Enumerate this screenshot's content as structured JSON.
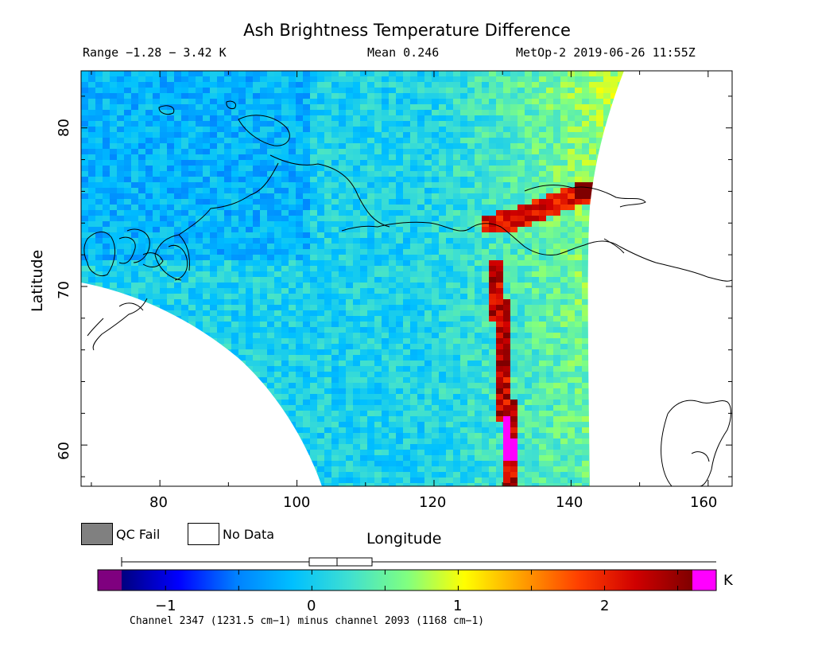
{
  "title": "Ash Brightness Temperature Difference",
  "header": {
    "range": "Range −1.28 − 3.42 K",
    "mean": "Mean 0.246",
    "satellite_time": "MetOp-2 2019-06-26 11:55Z"
  },
  "axes": {
    "xlabel": "Longitude",
    "ylabel": "Latitude",
    "x_ticks": [
      "80",
      "100",
      "120",
      "140",
      "160"
    ],
    "y_ticks": [
      "80",
      "70",
      "60"
    ]
  },
  "legend": {
    "qc_fail": "QC Fail",
    "no_data": "No Data",
    "qc_color": "#808080"
  },
  "colorbar": {
    "unit": "K",
    "ticks": [
      "−1",
      "0",
      "1",
      "2"
    ],
    "under_color": "#7f007f",
    "over_color": "#ff00ff",
    "caption": "Channel 2347 (1231.5 cm−1) minus channel 2093 (1168 cm−1)"
  },
  "map_extent": {
    "lon": [
      68.5,
      163.5
    ],
    "lat": [
      57.4,
      83.6
    ]
  },
  "colormap": [
    "#00007f",
    "#0000ff",
    "#0080ff",
    "#00c0ff",
    "#40e0d0",
    "#80ff80",
    "#ffff00",
    "#ffa000",
    "#ff4000",
    "#d00000",
    "#7f0000"
  ],
  "colorbar_range": [
    -1.3,
    2.6
  ]
}
